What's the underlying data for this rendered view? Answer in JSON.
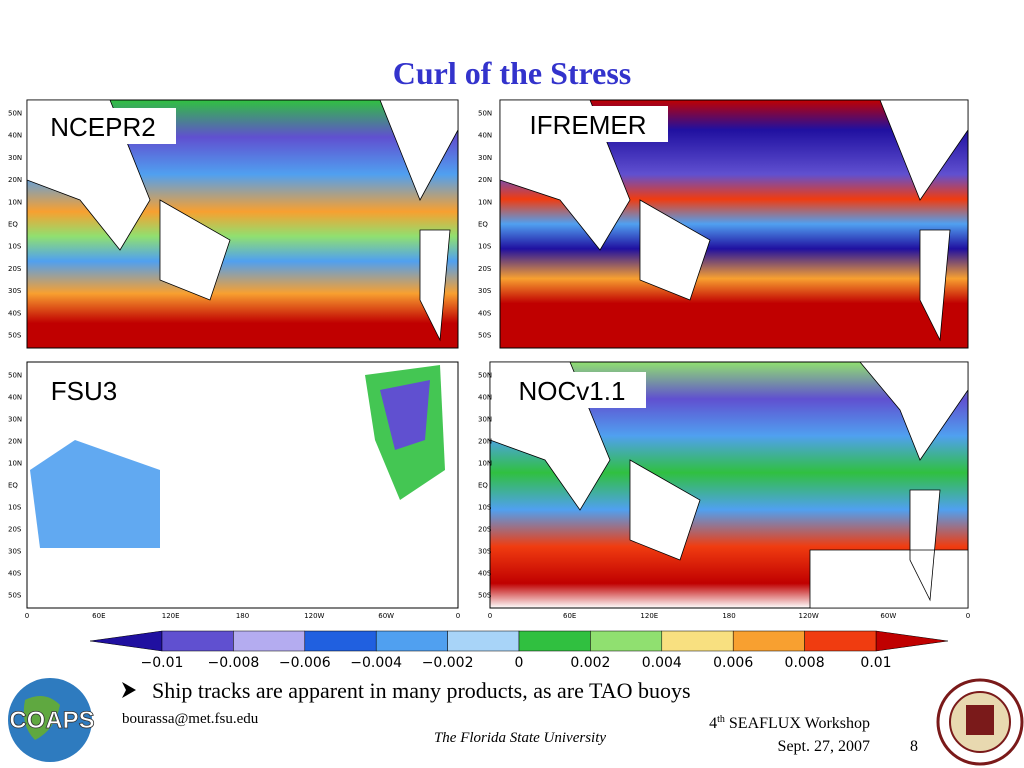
{
  "title": "Curl of the Stress",
  "panels": [
    {
      "label": "NCEPR2"
    },
    {
      "label": "IFREMER"
    },
    {
      "label": "FSU3"
    },
    {
      "label": "NOCv1.1"
    }
  ],
  "lat_labels": [
    "50N",
    "40N",
    "30N",
    "20N",
    "10N",
    "EQ",
    "10S",
    "20S",
    "30S",
    "40S",
    "50S"
  ],
  "lon_labels": [
    "0",
    "60E",
    "120E",
    "180",
    "120W",
    "60W",
    "0"
  ],
  "colorbar": {
    "labels": [
      "−0.01",
      "−0.008",
      "−0.006",
      "−0.004",
      "−0.002",
      "0",
      "0.002",
      "0.004",
      "0.006",
      "0.008",
      "0.01"
    ],
    "colors": [
      "#6050d0",
      "#b4acf0",
      "#2060e0",
      "#50a0f0",
      "#a8d4f8",
      "#30c040",
      "#90e070",
      "#f8e080",
      "#f8a030",
      "#f03c10"
    ],
    "low_color": "#2010a0",
    "high_color": "#c00000"
  },
  "bullet": "Ship tracks are apparent in many products, as are TAO buoys",
  "logo": "COAPS",
  "email": "bourassa@met.fsu.edu",
  "university": "The Florida State University",
  "workshop": {
    "number": "4",
    "suffix": "th",
    "name": "SEAFLUX Workshop"
  },
  "date": "Sept. 27, 2007",
  "page": "8"
}
